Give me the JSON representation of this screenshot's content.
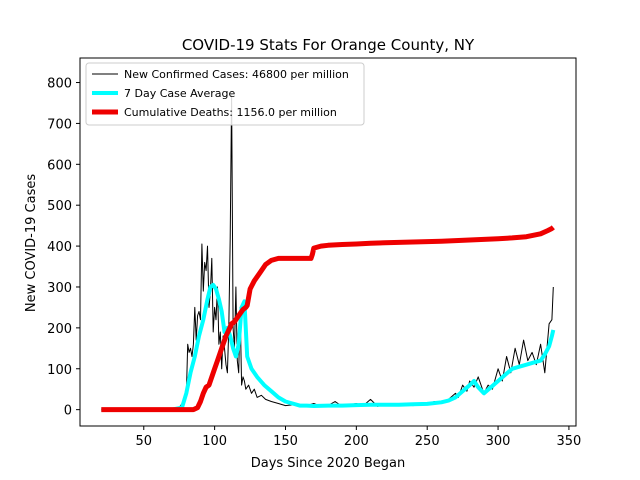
{
  "chart_data": {
    "type": "line",
    "title": "COVID-19 Stats For Orange County, NY",
    "xlabel": "Days Since 2020 Began",
    "ylabel": "New COVID-19 Cases",
    "xlim": [
      5,
      355
    ],
    "ylim": [
      -40,
      860
    ],
    "xticks": [
      50,
      100,
      150,
      200,
      250,
      300,
      350
    ],
    "yticks": [
      0,
      100,
      200,
      300,
      400,
      500,
      600,
      700,
      800
    ],
    "grid": false,
    "legend_position": "top-left",
    "series": [
      {
        "name": "New Confirmed Cases: 46800 per million",
        "color": "#000000",
        "width": 1,
        "x": [
          20,
          70,
          75,
          78,
          80,
          81,
          82,
          83,
          84,
          85,
          86,
          87,
          88,
          89,
          90,
          91,
          92,
          93,
          94,
          95,
          96,
          97,
          98,
          99,
          100,
          101,
          102,
          103,
          104,
          105,
          106,
          107,
          108,
          109,
          110,
          111,
          112,
          113,
          114,
          115,
          116,
          117,
          118,
          119,
          120,
          121,
          122,
          124,
          126,
          128,
          130,
          133,
          136,
          140,
          145,
          150,
          155,
          160,
          165,
          170,
          175,
          180,
          185,
          190,
          195,
          200,
          205,
          210,
          215,
          220,
          225,
          230,
          235,
          240,
          245,
          250,
          255,
          260,
          265,
          270,
          272,
          275,
          278,
          280,
          283,
          286,
          290,
          293,
          296,
          300,
          303,
          306,
          309,
          312,
          315,
          318,
          321,
          324,
          327,
          330,
          333,
          336,
          338,
          339
        ],
        "y": [
          0,
          0,
          5,
          20,
          30,
          160,
          140,
          150,
          130,
          160,
          250,
          170,
          230,
          240,
          220,
          405,
          290,
          360,
          340,
          400,
          250,
          290,
          370,
          190,
          250,
          220,
          300,
          160,
          190,
          100,
          180,
          150,
          110,
          90,
          200,
          420,
          770,
          200,
          150,
          300,
          120,
          90,
          250,
          60,
          80,
          70,
          50,
          60,
          40,
          50,
          30,
          35,
          25,
          20,
          15,
          10,
          12,
          8,
          10,
          15,
          8,
          10,
          20,
          8,
          12,
          15,
          10,
          25,
          8,
          15,
          10,
          12,
          15,
          10,
          15,
          12,
          20,
          18,
          25,
          40,
          30,
          60,
          45,
          70,
          55,
          80,
          40,
          60,
          50,
          100,
          70,
          130,
          90,
          150,
          110,
          170,
          120,
          140,
          110,
          160,
          90,
          210,
          220,
          300
        ]
      },
      {
        "name": "7 Day Case Average",
        "color": "#00ffff",
        "width": 4,
        "x": [
          20,
          70,
          77,
          80,
          83,
          86,
          89,
          92,
          95,
          97,
          99,
          101,
          103,
          105,
          107,
          109,
          111,
          113,
          115,
          117,
          119,
          121,
          123,
          126,
          130,
          135,
          140,
          145,
          150,
          155,
          160,
          165,
          170,
          180,
          190,
          200,
          210,
          220,
          230,
          240,
          250,
          260,
          265,
          270,
          275,
          280,
          283,
          286,
          290,
          295,
          300,
          305,
          310,
          315,
          320,
          325,
          330,
          333,
          336,
          338,
          339
        ],
        "y": [
          0,
          0,
          5,
          40,
          90,
          130,
          180,
          220,
          270,
          300,
          305,
          295,
          270,
          240,
          190,
          200,
          180,
          150,
          130,
          160,
          250,
          265,
          130,
          100,
          80,
          60,
          45,
          30,
          20,
          15,
          10,
          10,
          9,
          10,
          10,
          11,
          12,
          12,
          12,
          13,
          14,
          18,
          22,
          30,
          45,
          60,
          70,
          55,
          40,
          55,
          70,
          85,
          100,
          105,
          110,
          115,
          120,
          135,
          155,
          180,
          195
        ]
      },
      {
        "name": "Cumulative Deaths: 1156.0 per million",
        "color": "#ee0000",
        "width": 5,
        "x": [
          20,
          85,
          88,
          90,
          92,
          94,
          96,
          98,
          100,
          102,
          104,
          106,
          108,
          110,
          112,
          114,
          116,
          118,
          120,
          122,
          123,
          125,
          128,
          132,
          136,
          140,
          145,
          150,
          155,
          160,
          165,
          168,
          169,
          170,
          175,
          180,
          190,
          200,
          210,
          220,
          240,
          260,
          280,
          300,
          310,
          320,
          330,
          335,
          338,
          339
        ],
        "y": [
          0,
          0,
          5,
          20,
          40,
          55,
          60,
          80,
          100,
          120,
          140,
          160,
          180,
          195,
          210,
          215,
          225,
          235,
          245,
          250,
          255,
          295,
          315,
          335,
          355,
          365,
          370,
          370,
          370,
          370,
          370,
          370,
          380,
          395,
          400,
          402,
          404,
          405,
          407,
          408,
          410,
          412,
          415,
          418,
          420,
          423,
          430,
          438,
          443,
          446
        ]
      }
    ]
  }
}
